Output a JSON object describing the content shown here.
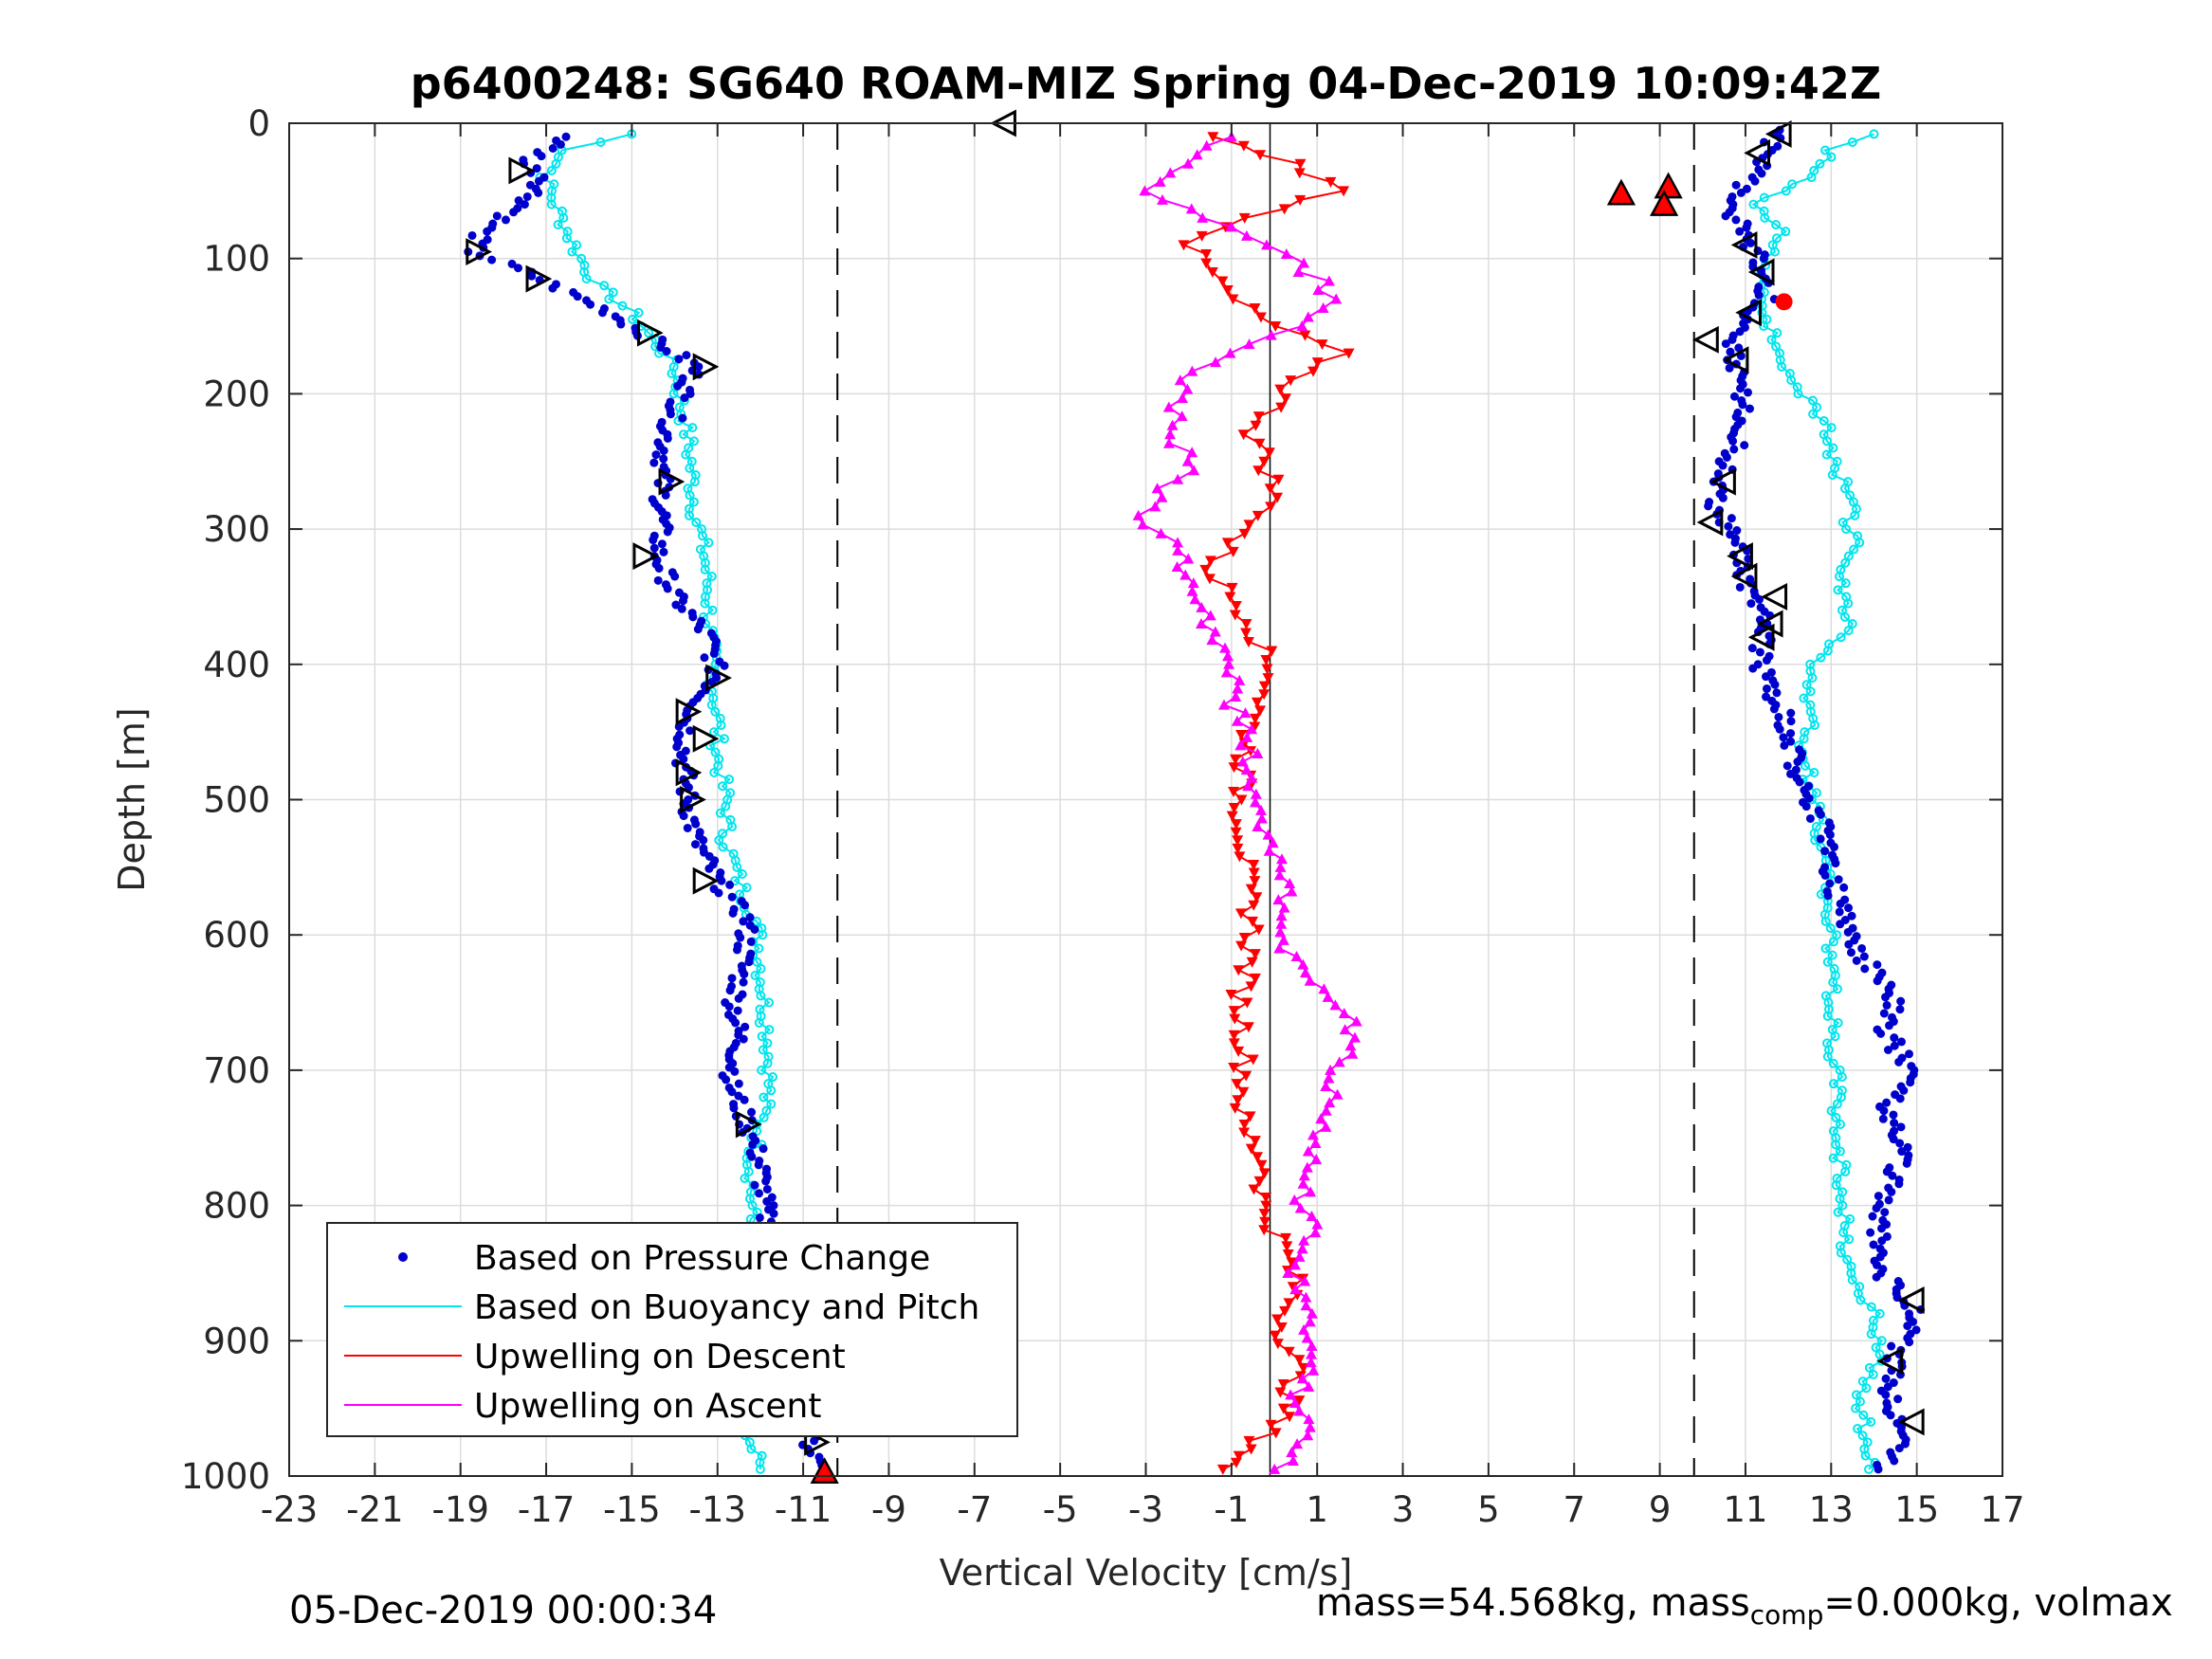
{
  "chart_data": {
    "type": "scatter",
    "title": "p6400248: SG640 ROAM-MIZ Spring 04-Dec-2019 10:09:42Z",
    "xlabel": "Vertical Velocity [cm/s]",
    "ylabel": "Depth [m]",
    "xlim": [
      -23,
      17
    ],
    "ylim": [
      0,
      1000
    ],
    "y_reversed": true,
    "grid": true,
    "legend_position": "bottom-left",
    "x_ticks": [
      "-23",
      "-21",
      "-19",
      "-17",
      "-15",
      "-13",
      "-11",
      "-9",
      "-7",
      "-5",
      "-3",
      "-1",
      "1",
      "3",
      "5",
      "7",
      "9",
      "11",
      "13",
      "15",
      "17"
    ],
    "y_ticks": [
      "0",
      "100",
      "200",
      "300",
      "400",
      "500",
      "600",
      "700",
      "800",
      "900",
      "1000"
    ],
    "reference_lines": {
      "dashed_x": [
        -10.2,
        9.8
      ],
      "solid_x": [
        -0.1
      ]
    },
    "colors": {
      "pressure": "#0000cc",
      "buoyancy": "#00e5ee",
      "descent": "#ff0000",
      "ascent": "#ff00ff",
      "marker_edge": "#000000"
    },
    "series": [
      {
        "name": "Based on Pressure Change",
        "style": "dots",
        "color": "#0000cc",
        "descent": {
          "y": [
            10,
            30,
            40,
            60,
            80,
            95,
            110,
            125,
            140,
            160,
            180,
            200,
            230,
            260,
            290,
            320,
            350,
            380,
            410,
            440,
            470,
            500,
            530,
            560,
            590,
            620,
            650,
            680,
            710,
            740,
            770,
            800,
            830,
            860,
            890,
            920,
            950,
            980,
            995
          ],
          "x": [
            -16.5,
            -17.5,
            -17,
            -17.5,
            -18.5,
            -18.7,
            -17.5,
            -16.5,
            -15.5,
            -14.5,
            -13.5,
            -13.8,
            -14.2,
            -14.3,
            -14.3,
            -14.4,
            -14,
            -13.2,
            -13,
            -13.7,
            -13.8,
            -13.7,
            -13.5,
            -13,
            -12.3,
            -12.4,
            -12.6,
            -12.5,
            -12.7,
            -12.3,
            -12,
            -11.9,
            -11.8,
            -11.6,
            -11.5,
            -11.3,
            -11.1,
            -10.8,
            -10.5
          ]
        },
        "ascent": {
          "y": [
            995,
            970,
            940,
            910,
            880,
            850,
            820,
            790,
            760,
            730,
            700,
            670,
            640,
            610,
            580,
            550,
            520,
            490,
            460,
            430,
            400,
            370,
            340,
            310,
            280,
            250,
            220,
            190,
            160,
            130,
            100,
            80,
            60,
            40,
            20,
            5
          ],
          "x": [
            14.2,
            14.8,
            14.3,
            14.5,
            15,
            14.2,
            14.1,
            14.3,
            14.7,
            14.3,
            14.8,
            14.3,
            14.5,
            13.5,
            13.2,
            13,
            12.8,
            12.3,
            12.1,
            11.8,
            11.3,
            11.5,
            11,
            10.8,
            10.3,
            10.6,
            11,
            10.8,
            10.6,
            11.5,
            11.3,
            11,
            10.5,
            11.2,
            11.5,
            11.8
          ]
        }
      },
      {
        "name": "Based on Buoyancy and Pitch",
        "style": "line-circles",
        "color": "#00e5ee",
        "descent": {
          "y": [
            8,
            20,
            40,
            60,
            80,
            100,
            120,
            140,
            160,
            180,
            200,
            230,
            260,
            290,
            320,
            350,
            380,
            410,
            440,
            470,
            500,
            530,
            560,
            590,
            620,
            650,
            680,
            710,
            740,
            770,
            800,
            830,
            860,
            890,
            920,
            950,
            980,
            995
          ],
          "x": [
            -15,
            -16.5,
            -17,
            -16.8,
            -16.5,
            -16.2,
            -15.8,
            -15,
            -14.5,
            -14,
            -13.9,
            -13.7,
            -13.6,
            -13.5,
            -13.3,
            -13.2,
            -13.2,
            -13.1,
            -13,
            -13,
            -12.8,
            -12.8,
            -12.5,
            -12.1,
            -12,
            -11.9,
            -11.8,
            -11.8,
            -12,
            -12.2,
            -12.2,
            -12.3,
            -12.2,
            -12.2,
            -12.1,
            -12.2,
            -12.2,
            -12
          ]
        },
        "ascent": {
          "y": [
            995,
            970,
            940,
            910,
            880,
            850,
            820,
            790,
            760,
            730,
            700,
            670,
            640,
            610,
            580,
            550,
            520,
            490,
            460,
            430,
            400,
            370,
            340,
            310,
            280,
            250,
            220,
            190,
            160,
            130,
            100,
            80,
            60,
            40,
            20,
            8
          ],
          "x": [
            14,
            13.8,
            13.7,
            14.1,
            14,
            13.5,
            13.3,
            13.3,
            13.2,
            13.1,
            13.1,
            13,
            13,
            13,
            12.9,
            12.9,
            12.7,
            12.5,
            12.4,
            12.5,
            12.6,
            13.5,
            13.3,
            13.5,
            13.4,
            13.1,
            12.8,
            12.2,
            11.6,
            11.5,
            11.5,
            11.8,
            11.2,
            12.5,
            13,
            14
          ]
        }
      },
      {
        "name": "Upwelling on Descent",
        "style": "line-triangle-down",
        "color": "#ff0000",
        "y": [
          10,
          30,
          50,
          70,
          90,
          110,
          130,
          150,
          170,
          190,
          210,
          230,
          250,
          270,
          290,
          310,
          330,
          350,
          370,
          390,
          410,
          440,
          470,
          500,
          530,
          560,
          590,
          620,
          650,
          680,
          710,
          740,
          770,
          800,
          830,
          860,
          890,
          920,
          950,
          980,
          995
        ],
        "x": [
          -1.5,
          0.5,
          1.5,
          -0.5,
          -2,
          -1.5,
          -1,
          0,
          1.5,
          0.5,
          0,
          -0.5,
          -0.2,
          0,
          -0.2,
          -1,
          -1.5,
          -1,
          -0.5,
          -0.3,
          0,
          -0.5,
          -0.7,
          -0.8,
          -0.7,
          -0.7,
          -0.5,
          -0.6,
          -0.8,
          -0.7,
          -0.7,
          -0.8,
          -0.2,
          -0.3,
          0.2,
          0.5,
          0.2,
          0.5,
          0.3,
          -0.5,
          -1.2
        ]
      },
      {
        "name": "Upwelling on Ascent",
        "style": "line-triangle-up",
        "color": "#ff00ff",
        "y": [
          995,
          970,
          940,
          910,
          880,
          850,
          820,
          790,
          760,
          730,
          700,
          670,
          640,
          610,
          580,
          550,
          520,
          490,
          460,
          430,
          400,
          370,
          340,
          310,
          290,
          270,
          250,
          230,
          210,
          190,
          170,
          150,
          130,
          110,
          90,
          70,
          50,
          30,
          10
        ],
        "x": [
          0,
          1,
          0.5,
          1,
          0.8,
          0.5,
          0.8,
          0.6,
          1,
          1.2,
          1.5,
          1.8,
          1.2,
          0.3,
          0.2,
          0.1,
          -0.2,
          -0.5,
          -0.6,
          -1,
          -1,
          -1.5,
          -1.8,
          -2.5,
          -3,
          -2.5,
          -1.8,
          -2.5,
          -2.3,
          -2,
          -1.2,
          0.5,
          1.5,
          0.8,
          0,
          -1.5,
          -3,
          -2,
          -1
        ]
      }
    ],
    "apogee_markers": {
      "descent": {
        "y": [
          35,
          95,
          115,
          155,
          180,
          265,
          320,
          410,
          435,
          455,
          480,
          500,
          560,
          740,
          915,
          940,
          975
        ],
        "x": [
          -17.6,
          -18.6,
          -17.2,
          -14.6,
          -13.3,
          -14.1,
          -14.7,
          -13,
          -13.7,
          -13.3,
          -13.7,
          -13.6,
          -13.3,
          -12.3,
          -10.9,
          -10.6,
          -10.7
        ]
      },
      "ascent": {
        "y": [
          8,
          22,
          90,
          110,
          140,
          160,
          175,
          265,
          295,
          320,
          335,
          350,
          370,
          380,
          870,
          915,
          960
        ],
        "x": [
          11.8,
          11.3,
          11,
          11.4,
          11.1,
          10.1,
          10.8,
          10.5,
          10.2,
          10.9,
          11,
          11.7,
          11.6,
          11.4,
          14.9,
          14.4,
          14.9
        ]
      },
      "turn": {
        "y": [
          0
        ],
        "x": [
          -6.3
        ]
      }
    },
    "highlight_markers": [
      {
        "x": -10.5,
        "y": 997,
        "shape": "triangle-up"
      },
      {
        "x": 8.1,
        "y": 52,
        "shape": "triangle-up"
      },
      {
        "x": 9.2,
        "y": 47,
        "shape": "triangle-up"
      },
      {
        "x": 9.1,
        "y": 60,
        "shape": "triangle-up"
      },
      {
        "x": 11.9,
        "y": 132,
        "shape": "circle"
      }
    ]
  },
  "legend": {
    "items": [
      {
        "label": "Based on Pressure Change",
        "color": "#0000cc",
        "style": "dot"
      },
      {
        "label": "Based on Buoyancy and Pitch",
        "color": "#00e5ee",
        "style": "line"
      },
      {
        "label": "Upwelling on Descent",
        "color": "#ff0000",
        "style": "line"
      },
      {
        "label": "Upwelling on Ascent",
        "color": "#ff00ff",
        "style": "line"
      }
    ]
  },
  "footer": {
    "timestamp": "05-Dec-2019 00:00:34",
    "mass_text": "mass=54.568kg, mass",
    "mass_sub": "comp",
    "mass_rest": "=0.000kg, volmax"
  }
}
